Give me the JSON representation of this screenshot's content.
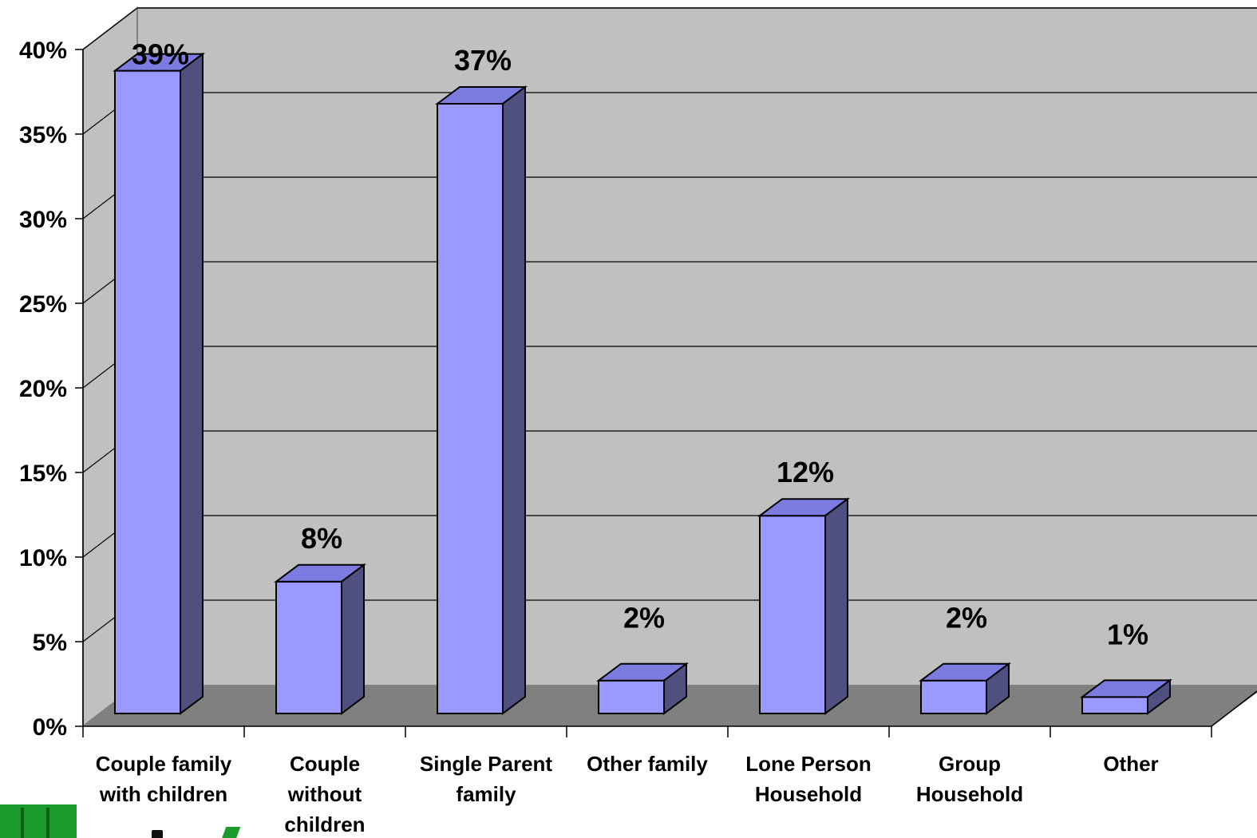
{
  "chart_data": {
    "type": "bar",
    "style": "3d-column",
    "categories": [
      [
        "Couple family",
        "with children"
      ],
      [
        "Couple",
        "without",
        "children"
      ],
      [
        "Single Parent",
        "family"
      ],
      [
        "Other family"
      ],
      [
        "Lone Person",
        "Household"
      ],
      [
        "Group",
        "Household"
      ],
      [
        "Other"
      ]
    ],
    "values": [
      39,
      8,
      37,
      2,
      12,
      2,
      1
    ],
    "data_labels": [
      "39%",
      "8%",
      "37%",
      "2%",
      "12%",
      "2%",
      "1%"
    ],
    "yticks": [
      "0%",
      "5%",
      "10%",
      "15%",
      "20%",
      "25%",
      "30%",
      "35%",
      "40%"
    ],
    "ytick_values": [
      0,
      5,
      10,
      15,
      20,
      25,
      30,
      35,
      40
    ],
    "ylim": [
      0,
      40
    ],
    "grid": true,
    "legend": "none",
    "colors": {
      "bar_front": "#9999ff",
      "bar_top": "#7b7be0",
      "bar_side": "#4f4f80",
      "wall": "#c0c0c0",
      "floor": "#808080"
    }
  }
}
